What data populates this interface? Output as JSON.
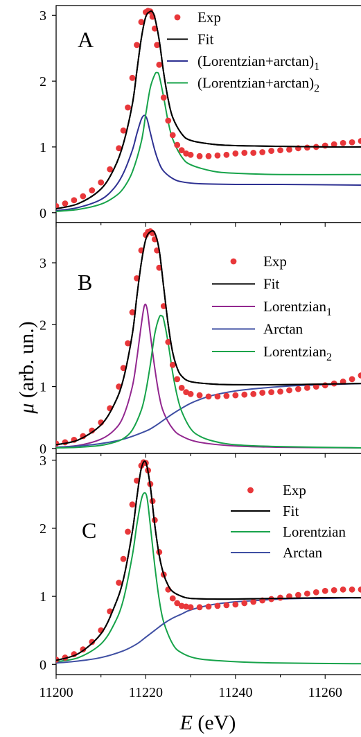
{
  "figure": {
    "ylabel_symbol": "μ",
    "ylabel_unit": " (arb. un.)",
    "xlabel_symbol": "E",
    "xlabel_unit": " (eV)",
    "x_ticks": [
      "11200",
      "11220",
      "11240",
      "11260"
    ]
  },
  "chart_data": [
    {
      "type": "line",
      "panel": "A",
      "xlim": [
        11200,
        11268
      ],
      "ylim": [
        -0.15,
        3.15
      ],
      "ylabel": "μ (arb. un.)",
      "y_ticks": [
        0,
        1,
        2,
        3
      ],
      "legend": [
        "Exp",
        "Fit",
        "(Lorentzian+arctan)1",
        "(Lorentzian+arctan)2"
      ],
      "series": [
        {
          "name": "Exp",
          "kind": "scatter",
          "color": "#e8373a",
          "x": [
            11200,
            11202,
            11204,
            11206,
            11208,
            11210,
            11212,
            11214,
            11215,
            11216,
            11217,
            11218,
            11219,
            11220,
            11220.5,
            11221,
            11221.5,
            11222,
            11222.5,
            11223,
            11224,
            11225,
            11226,
            11227,
            11228,
            11229,
            11230,
            11232,
            11234,
            11236,
            11238,
            11240,
            11242,
            11244,
            11246,
            11248,
            11250,
            11252,
            11254,
            11256,
            11258,
            11260,
            11262,
            11264,
            11266,
            11268
          ],
          "y": [
            0.1,
            0.14,
            0.19,
            0.25,
            0.34,
            0.46,
            0.66,
            0.98,
            1.25,
            1.6,
            2.05,
            2.55,
            2.9,
            3.05,
            3.07,
            3.06,
            2.98,
            2.8,
            2.55,
            2.25,
            1.75,
            1.4,
            1.18,
            1.03,
            0.95,
            0.9,
            0.88,
            0.86,
            0.86,
            0.87,
            0.88,
            0.9,
            0.91,
            0.91,
            0.92,
            0.94,
            0.95,
            0.96,
            0.98,
            0.99,
            1.0,
            1.02,
            1.04,
            1.06,
            1.07,
            1.09
          ]
        },
        {
          "name": "Fit",
          "kind": "line",
          "color": "#000000",
          "x": [
            11200,
            11205,
            11210,
            11213,
            11215,
            11217,
            11218,
            11219,
            11220,
            11221,
            11221.5,
            11222,
            11223,
            11224,
            11225,
            11226,
            11228,
            11230,
            11235,
            11240,
            11250,
            11260,
            11268
          ],
          "y": [
            0.06,
            0.14,
            0.36,
            0.68,
            1.05,
            1.65,
            2.15,
            2.65,
            2.98,
            3.06,
            3.05,
            2.97,
            2.62,
            2.12,
            1.72,
            1.45,
            1.2,
            1.1,
            1.04,
            1.02,
            1.01,
            1.0,
            1.0
          ]
        },
        {
          "name": "(Lorentzian+arctan)1",
          "kind": "line",
          "color": "#2e3192",
          "x": [
            11200,
            11205,
            11210,
            11213,
            11215,
            11217,
            11218,
            11219,
            11219.7,
            11220.3,
            11221,
            11222,
            11223,
            11224,
            11226,
            11228,
            11232,
            11240,
            11250,
            11268
          ],
          "y": [
            0.03,
            0.08,
            0.2,
            0.38,
            0.6,
            0.95,
            1.2,
            1.42,
            1.48,
            1.42,
            1.22,
            0.95,
            0.75,
            0.63,
            0.52,
            0.47,
            0.44,
            0.43,
            0.43,
            0.42
          ]
        },
        {
          "name": "(Lorentzian+arctan)2",
          "kind": "line",
          "color": "#17a34a",
          "x": [
            11200,
            11205,
            11210,
            11213,
            11215,
            11217,
            11219,
            11220,
            11221,
            11222,
            11222.5,
            11223,
            11224,
            11225,
            11226,
            11228,
            11230,
            11235,
            11240,
            11250,
            11268
          ],
          "y": [
            0.02,
            0.05,
            0.13,
            0.24,
            0.37,
            0.62,
            1.08,
            1.5,
            1.9,
            2.1,
            2.13,
            2.08,
            1.75,
            1.38,
            1.12,
            0.85,
            0.73,
            0.63,
            0.6,
            0.58,
            0.58
          ]
        }
      ]
    },
    {
      "type": "line",
      "panel": "B",
      "xlim": [
        11200,
        11268
      ],
      "ylim": [
        -0.08,
        3.65
      ],
      "ylabel": "μ (arb. un.)",
      "y_ticks": [
        0,
        1,
        2,
        3
      ],
      "legend": [
        "Exp",
        "Fit",
        "Lorentzian1",
        "Arctan",
        "Lorentzian2"
      ],
      "series": [
        {
          "name": "Exp",
          "kind": "scatter",
          "color": "#e8373a",
          "x": [
            11200,
            11202,
            11204,
            11206,
            11208,
            11210,
            11212,
            11214,
            11215,
            11216,
            11217,
            11218,
            11219,
            11220,
            11220.5,
            11221,
            11221.5,
            11222,
            11222.5,
            11223,
            11224,
            11225,
            11226,
            11227,
            11228,
            11229,
            11230,
            11232,
            11234,
            11236,
            11238,
            11240,
            11242,
            11244,
            11246,
            11248,
            11250,
            11252,
            11254,
            11256,
            11258,
            11260,
            11262,
            11264,
            11266,
            11268
          ],
          "y": [
            0.08,
            0.1,
            0.14,
            0.2,
            0.29,
            0.42,
            0.65,
            1.0,
            1.3,
            1.7,
            2.2,
            2.75,
            3.2,
            3.45,
            3.5,
            3.51,
            3.48,
            3.38,
            3.2,
            2.92,
            2.3,
            1.72,
            1.35,
            1.12,
            0.98,
            0.91,
            0.88,
            0.86,
            0.84,
            0.84,
            0.85,
            0.86,
            0.87,
            0.88,
            0.9,
            0.91,
            0.92,
            0.94,
            0.96,
            0.98,
            1.0,
            1.02,
            1.05,
            1.08,
            1.12,
            1.18
          ]
        },
        {
          "name": "Fit",
          "kind": "line",
          "color": "#000000",
          "x": [
            11200,
            11205,
            11210,
            11213,
            11215,
            11217,
            11218,
            11219,
            11220,
            11221,
            11222,
            11223,
            11224,
            11225,
            11226,
            11227,
            11228,
            11230,
            11235,
            11240,
            11250,
            11260,
            11268
          ],
          "y": [
            0.06,
            0.14,
            0.38,
            0.72,
            1.12,
            1.85,
            2.45,
            3.0,
            3.38,
            3.5,
            3.48,
            3.2,
            2.6,
            2.0,
            1.55,
            1.3,
            1.17,
            1.08,
            1.04,
            1.03,
            1.03,
            1.04,
            1.05
          ]
        },
        {
          "name": "Lorentzian1",
          "kind": "line",
          "color": "#92278f",
          "x": [
            11200,
            11205,
            11210,
            11213,
            11215,
            11217,
            11218,
            11219,
            11219.7,
            11220.3,
            11221,
            11222,
            11223,
            11224,
            11226,
            11228,
            11232,
            11240,
            11250,
            11268
          ],
          "y": [
            0.02,
            0.05,
            0.15,
            0.3,
            0.52,
            1.0,
            1.45,
            2.0,
            2.31,
            2.25,
            1.85,
            1.3,
            0.85,
            0.58,
            0.32,
            0.2,
            0.1,
            0.04,
            0.02,
            0.01
          ]
        },
        {
          "name": "Arctan",
          "kind": "line",
          "color": "#3f4fa3",
          "x": [
            11200,
            11205,
            11210,
            11215,
            11220,
            11222,
            11224,
            11226,
            11228,
            11230,
            11232,
            11235,
            11240,
            11245,
            11250,
            11255,
            11260,
            11268
          ],
          "y": [
            0.02,
            0.04,
            0.08,
            0.15,
            0.28,
            0.36,
            0.46,
            0.56,
            0.65,
            0.73,
            0.79,
            0.86,
            0.93,
            0.97,
            1.0,
            1.02,
            1.03,
            1.05
          ]
        },
        {
          "name": "Lorentzian2",
          "kind": "line",
          "color": "#17a34a",
          "x": [
            11200,
            11205,
            11210,
            11213,
            11215,
            11217,
            11219,
            11220,
            11221,
            11222,
            11223,
            11223.6,
            11224,
            11225,
            11226,
            11227,
            11228,
            11230,
            11232,
            11235,
            11240,
            11250,
            11268
          ],
          "y": [
            0.01,
            0.02,
            0.05,
            0.1,
            0.16,
            0.3,
            0.62,
            0.92,
            1.35,
            1.85,
            2.12,
            2.14,
            2.08,
            1.7,
            1.22,
            0.85,
            0.6,
            0.32,
            0.2,
            0.12,
            0.06,
            0.03,
            0.01
          ]
        }
      ]
    },
    {
      "type": "line",
      "panel": "C",
      "xlim": [
        11200,
        11268
      ],
      "ylim": [
        -0.15,
        3.1
      ],
      "ylabel": "μ (arb. un.)",
      "xlabel": "E (eV)",
      "y_ticks": [
        0,
        1,
        2,
        3
      ],
      "legend": [
        "Exp",
        "Fit",
        "Lorentzian",
        "Arctan"
      ],
      "series": [
        {
          "name": "Exp",
          "kind": "scatter",
          "color": "#e8373a",
          "x": [
            11200,
            11202,
            11204,
            11206,
            11208,
            11210,
            11212,
            11214,
            11215,
            11216,
            11217,
            11218,
            11219,
            11219.5,
            11220,
            11220.5,
            11221,
            11221.5,
            11222,
            11223,
            11224,
            11225,
            11226,
            11227,
            11228,
            11229,
            11230,
            11232,
            11234,
            11236,
            11238,
            11240,
            11242,
            11244,
            11246,
            11248,
            11250,
            11252,
            11254,
            11256,
            11258,
            11260,
            11262,
            11264,
            11266,
            11268
          ],
          "y": [
            0.07,
            0.1,
            0.15,
            0.22,
            0.33,
            0.5,
            0.78,
            1.2,
            1.55,
            1.95,
            2.35,
            2.7,
            2.92,
            2.97,
            2.96,
            2.85,
            2.65,
            2.4,
            2.12,
            1.65,
            1.32,
            1.1,
            0.97,
            0.9,
            0.86,
            0.85,
            0.84,
            0.84,
            0.85,
            0.86,
            0.87,
            0.88,
            0.9,
            0.92,
            0.94,
            0.96,
            0.98,
            1.0,
            1.02,
            1.04,
            1.06,
            1.08,
            1.09,
            1.1,
            1.1,
            1.1
          ]
        },
        {
          "name": "Fit",
          "kind": "line",
          "color": "#000000",
          "x": [
            11200,
            11205,
            11210,
            11213,
            11215,
            11217,
            11218,
            11219,
            11220,
            11221,
            11222,
            11223,
            11224,
            11225,
            11226,
            11228,
            11230,
            11235,
            11240,
            11250,
            11260,
            11268
          ],
          "y": [
            0.06,
            0.16,
            0.45,
            0.85,
            1.25,
            1.95,
            2.45,
            2.88,
            2.97,
            2.62,
            2.05,
            1.6,
            1.32,
            1.16,
            1.07,
            1.0,
            0.97,
            0.96,
            0.96,
            0.97,
            0.98,
            0.98
          ]
        },
        {
          "name": "Lorentzian",
          "kind": "line",
          "color": "#17a34a",
          "x": [
            11200,
            11205,
            11210,
            11213,
            11215,
            11217,
            11218,
            11219,
            11219.7,
            11220.3,
            11221,
            11222,
            11223,
            11224,
            11226,
            11228,
            11232,
            11240,
            11250,
            11268
          ],
          "y": [
            0.04,
            0.1,
            0.3,
            0.6,
            0.95,
            1.6,
            2.05,
            2.42,
            2.52,
            2.44,
            2.05,
            1.45,
            0.95,
            0.62,
            0.3,
            0.17,
            0.08,
            0.04,
            0.02,
            0.01
          ]
        },
        {
          "name": "Arctan",
          "kind": "line",
          "color": "#3f4fa3",
          "x": [
            11200,
            11205,
            11210,
            11215,
            11218,
            11220,
            11222,
            11224,
            11226,
            11228,
            11230,
            11235,
            11240,
            11245,
            11250,
            11255,
            11260,
            11268
          ],
          "y": [
            0.02,
            0.05,
            0.1,
            0.2,
            0.3,
            0.4,
            0.5,
            0.6,
            0.68,
            0.74,
            0.8,
            0.88,
            0.92,
            0.94,
            0.96,
            0.97,
            0.97,
            0.98
          ]
        }
      ]
    }
  ]
}
